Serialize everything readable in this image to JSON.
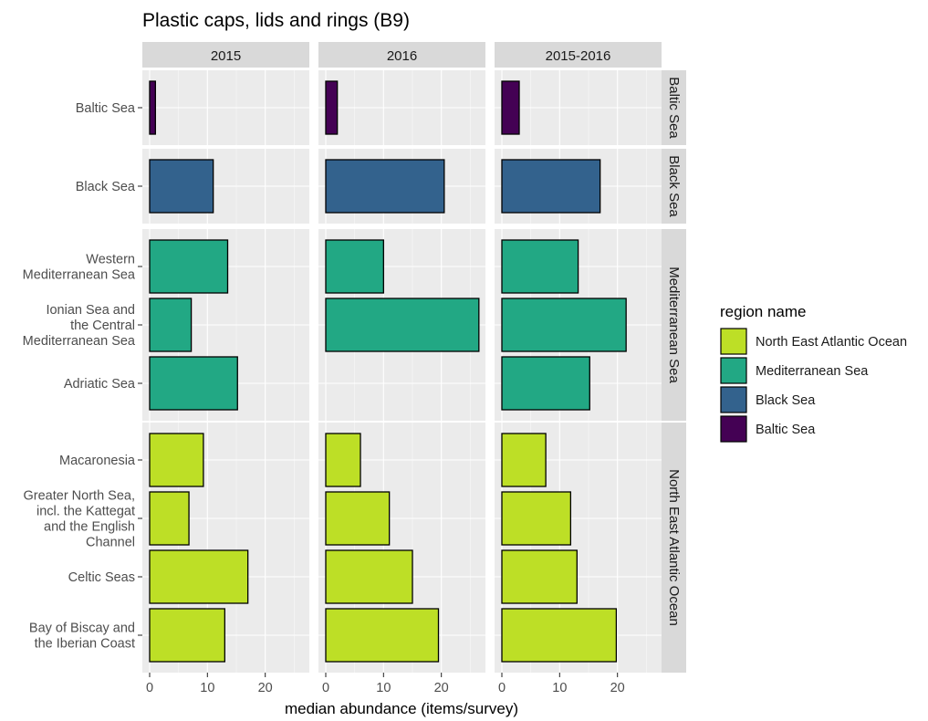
{
  "chart_data": {
    "type": "bar",
    "orientation": "horizontal",
    "title": "Plastic caps, lids and rings (B9)",
    "xlabel": "median abundance (items/survey)",
    "ylabel": "",
    "xlim": [
      0,
      27
    ],
    "x_ticks": [
      0,
      10,
      20
    ],
    "grid": true,
    "facet_columns": [
      "2015",
      "2016",
      "2015-2016"
    ],
    "facet_rows": [
      {
        "name": "Baltic Sea",
        "series": "Baltic Sea",
        "categories": [
          {
            "label": [
              "Baltic Sea"
            ],
            "values": [
              1,
              2,
              3
            ]
          }
        ]
      },
      {
        "name": "Black Sea",
        "series": "Black Sea",
        "categories": [
          {
            "label": [
              "Black Sea"
            ],
            "values": [
              11,
              20.5,
              17
            ]
          }
        ]
      },
      {
        "name": "Mediterranean Sea",
        "series": "Mediterranean Sea",
        "categories": [
          {
            "label": [
              "Western",
              "Mediterranean Sea"
            ],
            "values": [
              13.5,
              10,
              13.2
            ]
          },
          {
            "label": [
              "Ionian Sea and",
              "the Central",
              "Mediterranean Sea"
            ],
            "values": [
              7.2,
              26.5,
              21.5
            ]
          },
          {
            "label": [
              "Adriatic Sea"
            ],
            "values": [
              15.2,
              null,
              15.2
            ]
          }
        ]
      },
      {
        "name": "North East Atlantic Ocean",
        "series": "North East Atlantic Ocean",
        "categories": [
          {
            "label": [
              "Macaronesia"
            ],
            "values": [
              9.3,
              6,
              7.6
            ]
          },
          {
            "label": [
              "Greater North Sea,",
              "incl. the Kattegat",
              "and the English",
              "Channel"
            ],
            "values": [
              6.8,
              11,
              11.9
            ]
          },
          {
            "label": [
              "Celtic Seas"
            ],
            "values": [
              17,
              15,
              13
            ]
          },
          {
            "label": [
              "Bay of Biscay and",
              "the Iberian Coast"
            ],
            "values": [
              13,
              19.5,
              19.8
            ]
          }
        ]
      }
    ],
    "legend": {
      "title": "region name",
      "position": "right",
      "items": [
        {
          "name": "North East Atlantic Ocean",
          "color": "#bddf26"
        },
        {
          "name": "Mediterranean Sea",
          "color": "#22a884"
        },
        {
          "name": "Black Sea",
          "color": "#33628d"
        },
        {
          "name": "Baltic Sea",
          "color": "#440154"
        }
      ]
    }
  }
}
